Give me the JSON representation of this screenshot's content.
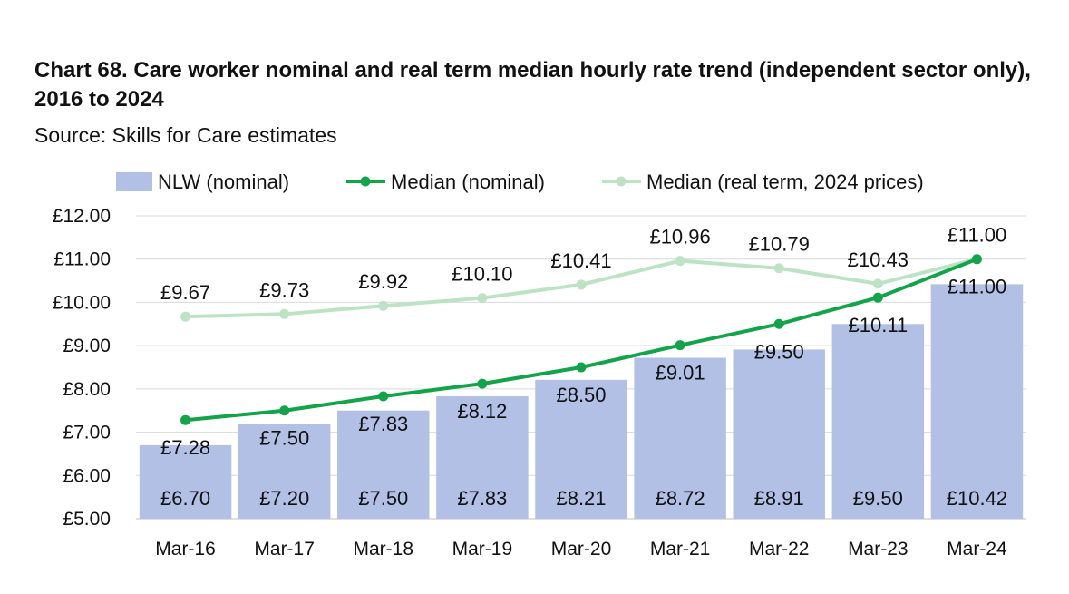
{
  "title": "Chart 68. Care worker nominal and real term median hourly rate trend (independent sector only), 2016 to 2024",
  "subtitle": "Source: Skills for Care estimates",
  "colors": {
    "bar": "#b3c0e6",
    "median_nominal": "#13a34a",
    "median_real": "#bde3c4",
    "grid": "#d9d9d9"
  },
  "chart_data": {
    "type": "bar",
    "categories": [
      "Mar-16",
      "Mar-17",
      "Mar-18",
      "Mar-19",
      "Mar-20",
      "Mar-21",
      "Mar-22",
      "Mar-23",
      "Mar-24"
    ],
    "ylim": [
      5,
      12
    ],
    "yticks": [
      5,
      6,
      7,
      8,
      9,
      10,
      11,
      12
    ],
    "ytick_labels": [
      "£5.00",
      "£6.00",
      "£7.00",
      "£8.00",
      "£9.00",
      "£10.00",
      "£11.00",
      "£12.00"
    ],
    "grid": true,
    "legend_position": "top",
    "series": [
      {
        "name": "NLW (nominal)",
        "type": "bar",
        "values": [
          6.7,
          7.2,
          7.5,
          7.83,
          8.21,
          8.72,
          8.91,
          9.5,
          10.42
        ],
        "labels": [
          "£6.70",
          "£7.20",
          "£7.50",
          "£7.83",
          "£8.21",
          "£8.72",
          "£8.91",
          "£9.50",
          "£10.42"
        ]
      },
      {
        "name": "Median (nominal)",
        "type": "line",
        "values": [
          7.28,
          7.5,
          7.83,
          8.12,
          8.5,
          9.01,
          9.5,
          10.11,
          11.0
        ],
        "labels": [
          "£7.28",
          "£7.50",
          "£7.83",
          "£8.12",
          "£8.50",
          "£9.01",
          "£9.50",
          "£10.11",
          "£11.00"
        ]
      },
      {
        "name": "Median (real term, 2024 prices)",
        "type": "line",
        "values": [
          9.67,
          9.73,
          9.92,
          10.1,
          10.41,
          10.96,
          10.79,
          10.43,
          11.0
        ],
        "labels": [
          "£9.67",
          "£9.73",
          "£9.92",
          "£10.10",
          "£10.41",
          "£10.96",
          "£10.79",
          "£10.43",
          "£11.00"
        ]
      }
    ]
  }
}
